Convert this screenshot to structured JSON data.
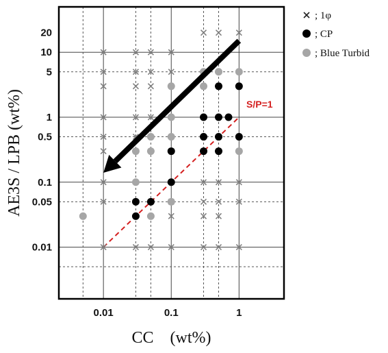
{
  "chart_data": {
    "type": "scatter",
    "xlabel": "CC　(wt%)",
    "ylabel": "AE3S / LPB (wt%)",
    "x_scale": "log",
    "y_scale": "log",
    "xlim": [
      0.0022,
      4.6
    ],
    "ylim": [
      0.0016,
      50
    ],
    "x_ticks": [
      {
        "value": 0.01,
        "label": "0.01"
      },
      {
        "value": 0.1,
        "label": "0.1"
      },
      {
        "value": 1,
        "label": "1"
      }
    ],
    "y_ticks": [
      {
        "value": 20,
        "label": "20"
      },
      {
        "value": 10,
        "label": "10"
      },
      {
        "value": 5,
        "label": "5"
      },
      {
        "value": 1,
        "label": "1"
      },
      {
        "value": 0.5,
        "label": "0.5"
      },
      {
        "value": 0.1,
        "label": "0.1"
      },
      {
        "value": 0.05,
        "label": "0.05"
      },
      {
        "value": 0.01,
        "label": "0.01"
      }
    ],
    "grid": {
      "solid_x": [
        0.01,
        0.1,
        1
      ],
      "dashed_x": [
        0.005,
        0.03,
        0.05,
        0.3,
        0.5
      ],
      "solid_y": [
        0.01,
        0.1,
        1,
        10
      ],
      "dashed_y": [
        0.005,
        0.05,
        0.5,
        5
      ]
    },
    "legend_position": "top-right",
    "series": [
      {
        "name": "; 1φ",
        "marker": "x",
        "color": "#808080",
        "points": [
          [
            0.3,
            20
          ],
          [
            0.5,
            20
          ],
          [
            1,
            20
          ],
          [
            0.01,
            10
          ],
          [
            0.03,
            10
          ],
          [
            0.05,
            10
          ],
          [
            0.1,
            10
          ],
          [
            0.01,
            5
          ],
          [
            0.03,
            5
          ],
          [
            0.05,
            5
          ],
          [
            0.1,
            5
          ],
          [
            0.01,
            3
          ],
          [
            0.03,
            3
          ],
          [
            0.05,
            3
          ],
          [
            0.01,
            1
          ],
          [
            0.03,
            1
          ],
          [
            0.05,
            1
          ],
          [
            0.01,
            0.5
          ],
          [
            0.03,
            0.5
          ],
          [
            0.01,
            0.3
          ],
          [
            0.01,
            0.1
          ],
          [
            0.3,
            0.1
          ],
          [
            0.5,
            0.1
          ],
          [
            1,
            0.1
          ],
          [
            0.01,
            0.05
          ],
          [
            0.1,
            0.05
          ],
          [
            0.3,
            0.05
          ],
          [
            0.5,
            0.05
          ],
          [
            1,
            0.05
          ],
          [
            0.1,
            0.03
          ],
          [
            0.3,
            0.03
          ],
          [
            0.5,
            0.03
          ],
          [
            0.01,
            0.01
          ],
          [
            0.03,
            0.01
          ],
          [
            0.05,
            0.01
          ],
          [
            0.1,
            0.01
          ],
          [
            0.3,
            0.01
          ],
          [
            0.5,
            0.01
          ],
          [
            1,
            0.01
          ]
        ]
      },
      {
        "name": "; CP",
        "marker": "circle",
        "color": "#000000",
        "points": [
          [
            0.5,
            3
          ],
          [
            1,
            3
          ],
          [
            0.3,
            1
          ],
          [
            0.5,
            1
          ],
          [
            0.7,
            1
          ],
          [
            0.3,
            0.5
          ],
          [
            0.5,
            0.5
          ],
          [
            1,
            0.5
          ],
          [
            0.1,
            0.3
          ],
          [
            0.3,
            0.3
          ],
          [
            0.5,
            0.3
          ],
          [
            0.1,
            0.1
          ],
          [
            0.03,
            0.05
          ],
          [
            0.05,
            0.05
          ],
          [
            0.03,
            0.03
          ]
        ]
      },
      {
        "name": "; Blue Turbid",
        "marker": "circle",
        "color": "#a6a6a6",
        "points": [
          [
            0.3,
            5
          ],
          [
            0.5,
            5
          ],
          [
            1,
            5
          ],
          [
            0.1,
            3
          ],
          [
            0.3,
            3
          ],
          [
            0.1,
            1
          ],
          [
            0.05,
            0.5
          ],
          [
            0.1,
            0.5
          ],
          [
            0.03,
            0.3
          ],
          [
            0.05,
            0.3
          ],
          [
            1,
            0.3
          ],
          [
            0.03,
            0.1
          ],
          [
            0.1,
            0.05
          ],
          [
            0.005,
            0.03
          ],
          [
            0.05,
            0.03
          ]
        ]
      }
    ],
    "annotations": [
      {
        "text": "S/P=1",
        "color": "#d42020"
      }
    ],
    "reference_line": {
      "label": "S/P=1",
      "x": [
        0.01,
        1
      ],
      "y": [
        0.01,
        1
      ],
      "style": "dashed",
      "color": "#d42020"
    },
    "arrow": {
      "from": [
        1,
        15
      ],
      "to": [
        0.01,
        0.14
      ],
      "color": "#000000"
    }
  }
}
